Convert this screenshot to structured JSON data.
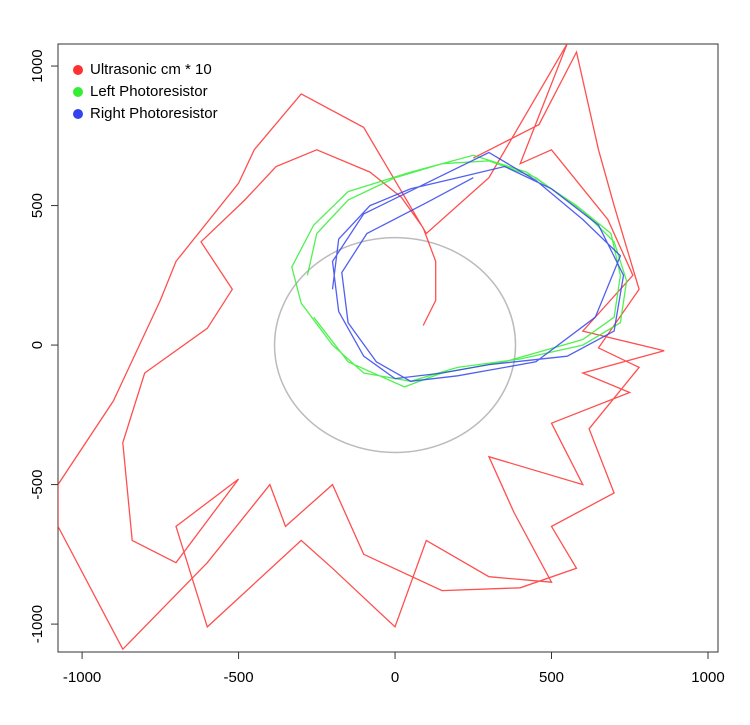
{
  "chart_data": {
    "type": "line",
    "xlim": [
      -1077,
      1032
    ],
    "ylim": [
      -1100,
      1079
    ],
    "xticks": [
      -1000,
      -500,
      0,
      500,
      1000
    ],
    "yticks": [
      -1000,
      -500,
      0,
      500,
      1000
    ],
    "reference_circle": {
      "radius": 385,
      "color": "#bbbbbb"
    },
    "series": [
      {
        "name": "Ultrasonic cm * 10",
        "color": "#ff3030",
        "x": [
          90,
          130,
          130,
          90,
          20,
          -80,
          -250,
          -380,
          -480,
          -620,
          -520,
          -600,
          -800,
          -870,
          -840,
          -700,
          -500,
          -700,
          -600,
          -300,
          -200,
          0,
          100,
          300,
          500,
          380,
          300,
          600,
          500,
          750,
          600,
          860,
          600,
          760,
          680,
          500,
          400,
          550,
          300,
          100,
          -100,
          -300,
          -450,
          -500,
          -700,
          -750,
          -900,
          -1077,
          -1077,
          -870,
          -600,
          -400,
          -350,
          -200,
          -100,
          150,
          400,
          580,
          500,
          700,
          620,
          780,
          650,
          780,
          700,
          650,
          580,
          460,
          250
        ],
        "y": [
          70,
          160,
          300,
          420,
          530,
          620,
          700,
          640,
          520,
          370,
          200,
          60,
          -100,
          -350,
          -700,
          -780,
          -480,
          -650,
          -1010,
          -700,
          -800,
          -1010,
          -700,
          -830,
          -850,
          -600,
          -400,
          -500,
          -280,
          -170,
          -100,
          -20,
          50,
          250,
          450,
          700,
          650,
          1080,
          600,
          400,
          780,
          900,
          700,
          580,
          300,
          160,
          -200,
          -500,
          -650,
          -1090,
          -780,
          -500,
          -650,
          -500,
          -750,
          -880,
          -870,
          -800,
          -650,
          -530,
          -300,
          -80,
          -10,
          200,
          500,
          700,
          1050,
          790,
          670
        ]
      },
      {
        "name": "Left Photoresistor",
        "color": "#33ee33",
        "x": [
          -280,
          -250,
          -150,
          0,
          150,
          300,
          450,
          600,
          700,
          740,
          720,
          600,
          400,
          200,
          50,
          -100,
          -200,
          -300,
          -330,
          -260,
          -150,
          50,
          250,
          420,
          580,
          690,
          720,
          700,
          600,
          350,
          150,
          30,
          -150,
          -260
        ],
        "y": [
          250,
          400,
          520,
          600,
          650,
          660,
          600,
          480,
          370,
          230,
          80,
          0,
          -50,
          -80,
          -130,
          -100,
          0,
          150,
          280,
          430,
          550,
          620,
          680,
          620,
          500,
          400,
          250,
          100,
          20,
          -60,
          -100,
          -150,
          -60,
          100
        ]
      },
      {
        "name": "Right Photoresistor",
        "color": "#3344ee",
        "x": [
          -200,
          -180,
          -80,
          50,
          200,
          350,
          500,
          650,
          730,
          700,
          550,
          300,
          150,
          0,
          -100,
          -180,
          -200,
          -100,
          100,
          300,
          450,
          600,
          720,
          640,
          450,
          200,
          50,
          -60,
          -150,
          -170,
          -90,
          100,
          250
        ],
        "y": [
          200,
          380,
          500,
          560,
          600,
          640,
          560,
          430,
          250,
          50,
          -40,
          -70,
          -100,
          -120,
          -40,
          120,
          300,
          470,
          580,
          690,
          590,
          450,
          320,
          100,
          -60,
          -110,
          -130,
          -60,
          80,
          260,
          400,
          510,
          600
        ]
      }
    ]
  }
}
